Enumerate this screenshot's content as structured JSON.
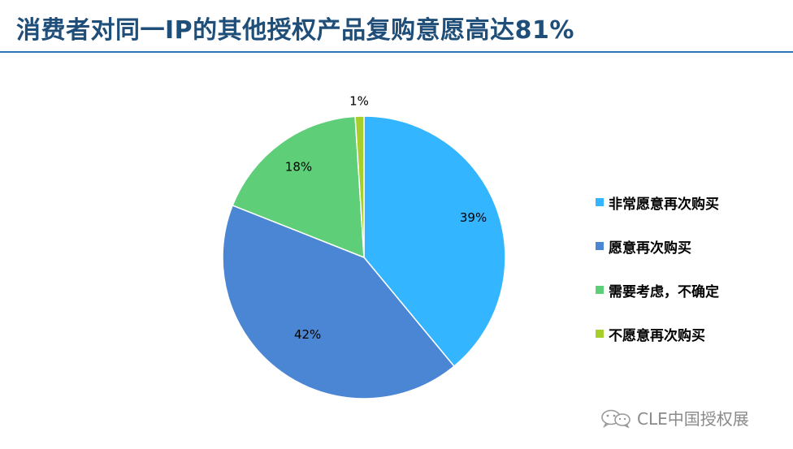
{
  "slide": {
    "title": "消费者对同一IP的其他授权产品复购意愿高达81%"
  },
  "watermark": {
    "text": "CLE中国授权展",
    "icon": "wechat-icon"
  },
  "chart_data": {
    "type": "pie",
    "categories": [
      "非常愿意再次购买",
      "愿意再次购买",
      "需要考虑，不确定",
      "不愿意再次购买"
    ],
    "values": [
      39,
      42,
      18,
      1
    ],
    "labels": [
      "39%",
      "42%",
      "18%",
      "1%"
    ],
    "colors": [
      "#33b5ff",
      "#4a86d4",
      "#5ecf78",
      "#a6cf2b"
    ],
    "legend_position": "right"
  }
}
